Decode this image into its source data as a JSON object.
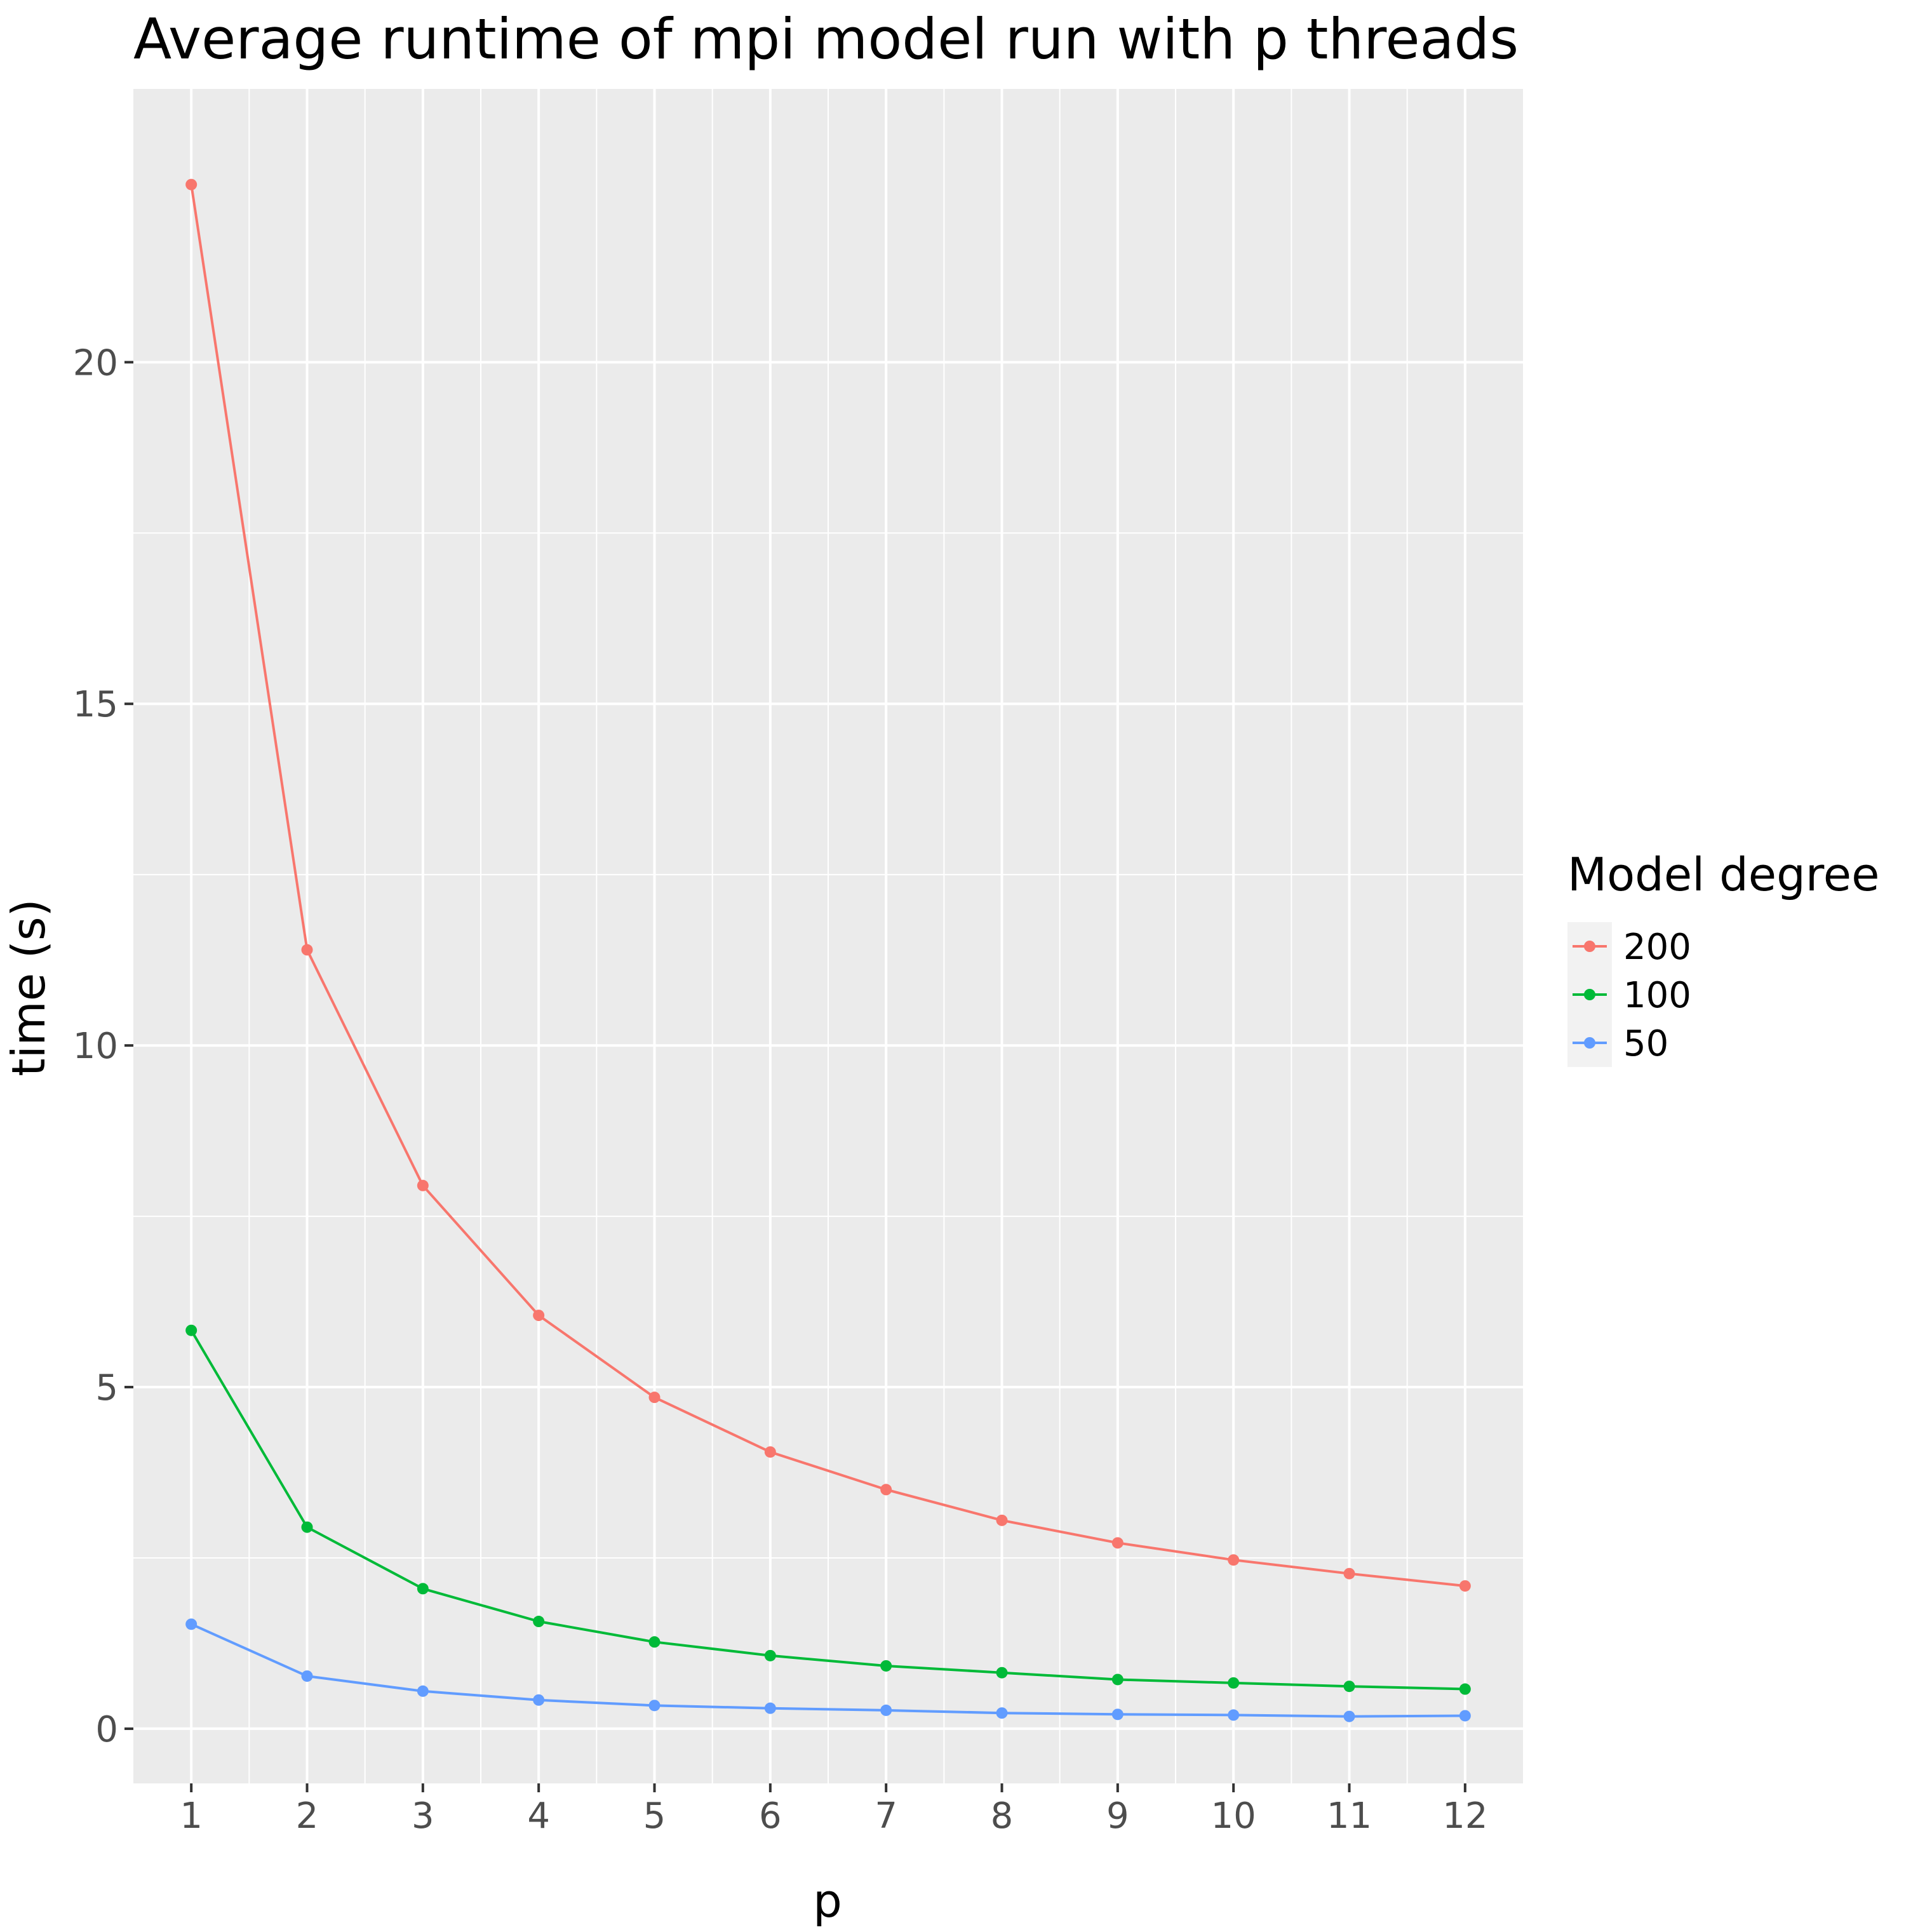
{
  "chart_data": {
    "type": "line",
    "title": "Average runtime of mpi model run with p threads",
    "xlabel": "p",
    "ylabel": "time (s)",
    "x": [
      1,
      2,
      3,
      4,
      5,
      6,
      7,
      8,
      9,
      10,
      11,
      12
    ],
    "xlim": [
      0.5,
      12.5
    ],
    "ylim": [
      -0.8,
      24.0
    ],
    "x_ticks": [
      "1",
      "2",
      "3",
      "4",
      "5",
      "6",
      "7",
      "8",
      "9",
      "10",
      "11",
      "12"
    ],
    "y_ticks": [
      {
        "value": 0,
        "label": "0"
      },
      {
        "value": 5,
        "label": "5"
      },
      {
        "value": 10,
        "label": "10"
      },
      {
        "value": 15,
        "label": "15"
      },
      {
        "value": 20,
        "label": "20"
      }
    ],
    "grid": true,
    "panel_background": "#ebebeb",
    "legend": {
      "title": "Model degree",
      "position": "right"
    },
    "series": [
      {
        "name": "200",
        "color": "#f8766d",
        "values": [
          22.6,
          11.4,
          7.95,
          6.05,
          4.85,
          4.05,
          3.5,
          3.05,
          2.72,
          2.47,
          2.27,
          2.09
        ]
      },
      {
        "name": "100",
        "color": "#00ba38",
        "values": [
          5.83,
          2.95,
          2.05,
          1.57,
          1.27,
          1.07,
          0.92,
          0.82,
          0.72,
          0.67,
          0.62,
          0.58
        ]
      },
      {
        "name": "50",
        "color": "#619cff",
        "values": [
          1.53,
          0.77,
          0.55,
          0.42,
          0.34,
          0.3,
          0.27,
          0.23,
          0.21,
          0.2,
          0.18,
          0.19
        ]
      }
    ]
  }
}
